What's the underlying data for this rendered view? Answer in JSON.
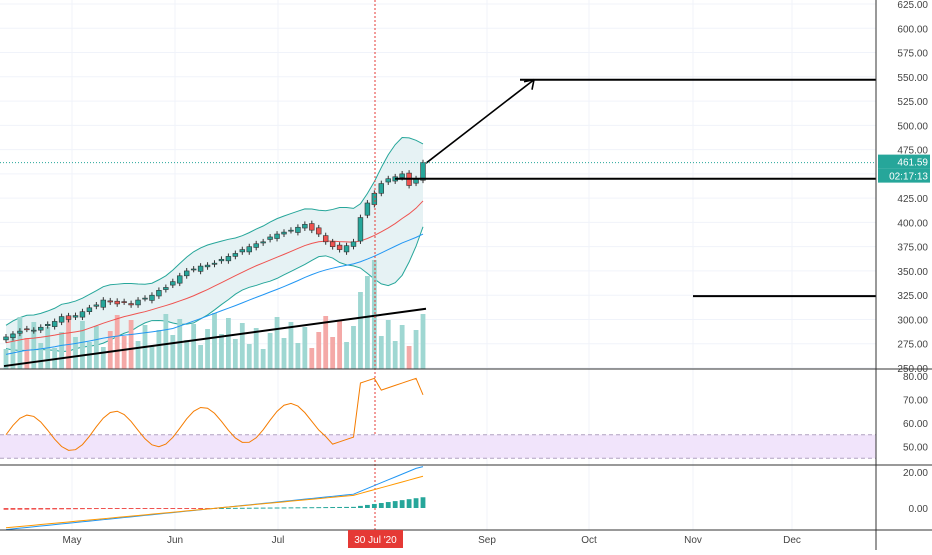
{
  "price_pane": {
    "last_price_label": "461.59",
    "countdown_label": "02:17:13",
    "y_ticks": [
      "625.00",
      "600.00",
      "575.00",
      "550.00",
      "525.00",
      "500.00",
      "475.00",
      "450.00",
      "425.00",
      "400.00",
      "375.00",
      "350.00",
      "325.00",
      "300.00",
      "275.00",
      "250.00"
    ]
  },
  "rsi_pane": {
    "y_ticks": [
      "80.00",
      "70.00",
      "60.00",
      "50.00"
    ]
  },
  "macd_pane": {
    "y_ticks": [
      "20.00",
      "0.00"
    ]
  },
  "time_axis": {
    "month_labels": [
      "May",
      "Jun",
      "Jul",
      "Sep",
      "Oct",
      "Nov",
      "Dec"
    ],
    "crosshair_label": "30 Jul '20"
  },
  "colors": {
    "up": "#26a69a",
    "down": "#ef5350",
    "bb_fill": "#e6f2f4",
    "rsi_line": "#f57c00",
    "rsi_band": "#f1e4fb",
    "macd_line": "#2196f3",
    "signal_line": "#ff9800",
    "crosshair": "#e53935",
    "axis_text": "#444444"
  },
  "chart_data": {
    "type": "candlestick",
    "price_scale": {
      "min": 245,
      "max": 630
    },
    "ohlc_sample_closes": [
      282,
      285,
      288,
      290,
      289,
      292,
      295,
      298,
      303,
      300,
      304,
      308,
      312,
      315,
      320,
      318,
      316,
      318,
      315,
      320,
      322,
      325,
      330,
      333,
      339,
      345,
      350,
      352,
      355,
      356,
      358,
      362,
      365,
      368,
      372,
      375,
      378,
      380,
      385,
      388,
      390,
      392,
      395,
      398,
      392,
      388,
      380,
      375,
      372,
      376,
      380,
      405,
      420,
      430,
      440,
      445,
      447,
      450,
      438,
      445,
      461.59
    ],
    "indicators": [
      "bollinger_bands",
      "sma_20",
      "sma_50",
      "volume",
      "rsi_14",
      "macd"
    ],
    "horizontal_lines": [
      445,
      547,
      324
    ],
    "projection_arrow": {
      "from": 461,
      "to": 547
    },
    "trendline": {
      "from": 252,
      "to": 311
    },
    "rsi_band": [
      45,
      55
    ],
    "rsi_series_end": 72,
    "macd_end": [
      23,
      19
    ]
  }
}
